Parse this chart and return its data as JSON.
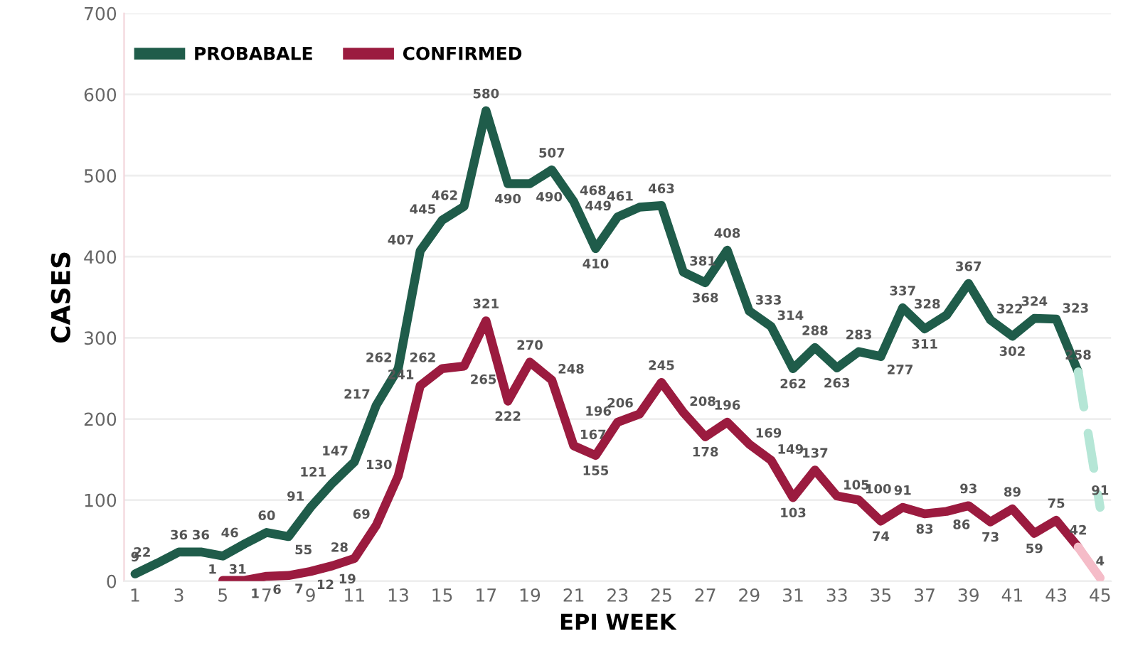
{
  "chart_data": {
    "type": "line",
    "xlabel": "EPI WEEK",
    "ylabel": "CASES",
    "xlim": [
      0.5,
      45.5
    ],
    "xticks": [
      1,
      3,
      5,
      7,
      9,
      11,
      13,
      15,
      17,
      19,
      21,
      23,
      25,
      27,
      29,
      31,
      33,
      35,
      37,
      39,
      41,
      43,
      45
    ],
    "ylim": [
      0,
      700
    ],
    "yticks": [
      0,
      100,
      200,
      300,
      400,
      500,
      600,
      700
    ],
    "grid": "y",
    "legend": "top left",
    "data_labels": true,
    "line_style": "solid",
    "marker": "none",
    "series": [
      {
        "name": "PROBABALE",
        "color": "#1f5c4a",
        "x": [
          1,
          2,
          3,
          4,
          5,
          6,
          7,
          8,
          9,
          10,
          11,
          12,
          13,
          14,
          15,
          16,
          17,
          18,
          19,
          20,
          21,
          22,
          23,
          24,
          25,
          26,
          27,
          28,
          29,
          30,
          31,
          32,
          33,
          34,
          35,
          36,
          37,
          38,
          39,
          40,
          41,
          42,
          43,
          44
        ],
        "values": [
          9,
          22,
          36,
          36,
          31,
          46,
          60,
          55,
          91,
          121,
          147,
          217,
          262,
          407,
          445,
          462,
          580,
          490,
          490,
          507,
          468,
          410,
          449,
          461,
          463,
          381,
          368,
          408,
          333,
          314,
          262,
          288,
          263,
          283,
          277,
          337,
          311,
          328,
          367,
          322,
          302,
          324,
          323,
          258
        ]
      },
      {
        "name": "CONFIRMED",
        "color": "#9b1b3f",
        "x": [
          5,
          6,
          7,
          8,
          9,
          10,
          11,
          12,
          13,
          14,
          15,
          16,
          17,
          18,
          19,
          20,
          21,
          22,
          23,
          24,
          25,
          26,
          27,
          28,
          29,
          30,
          31,
          32,
          33,
          34,
          35,
          36,
          37,
          38,
          39,
          40,
          41,
          42,
          43,
          44
        ],
        "values": [
          1,
          1,
          6,
          7,
          12,
          19,
          28,
          69,
          130,
          241,
          262,
          265,
          321,
          222,
          270,
          248,
          167,
          155,
          196,
          206,
          245,
          208,
          178,
          196,
          169,
          149,
          103,
          137,
          105,
          100,
          74,
          91,
          83,
          86,
          93,
          73,
          89,
          59,
          75,
          42
        ]
      },
      {
        "color": "#b5e6d6",
        "line_style": "dashed",
        "x": [
          44,
          45
        ],
        "values": [
          258,
          91
        ],
        "value_labels": [
          null,
          "91"
        ]
      },
      {
        "color": "#f5bcc8",
        "x": [
          44,
          45
        ],
        "values": [
          42,
          4
        ],
        "value_labels": [
          null,
          "4"
        ]
      }
    ]
  }
}
